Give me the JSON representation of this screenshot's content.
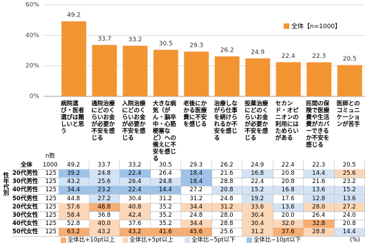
{
  "chart_data": {
    "type": "bar",
    "legend": "全体【n=1000】",
    "legend_position": "upper right",
    "color": "#f39433",
    "grid": true,
    "categories": [
      "病院選び・医者選びは難しいと思う",
      "通院治療にどのくらいお金が必要か不安を感じる",
      "入院治療にどのくらいお金が必要か不安を感じる",
      "大きな病気（がん・脳卒中・心筋梗塞など）への備えに不安を感じる",
      "老後にかかる医療費に不安を感じる",
      "治療しながら仕事を続けられるか不安を感じる",
      "投薬治療にどのくらいお金が必要か不安を感じる",
      "セカンド・オピニオンの利用にはためらいがある",
      "民間の保険で医療費や生活費がカバーできるか不安を感じる",
      "医師とのコミュニケーションが苦手"
    ],
    "values": [
      49.2,
      33.7,
      33.2,
      30.5,
      29.3,
      26.2,
      24.9,
      22.4,
      22.3,
      20.5
    ],
    "ylim": [
      0,
      60
    ],
    "yticks": [
      {
        "value": 0,
        "label": "0%"
      },
      {
        "value": 20,
        "label": "20%"
      },
      {
        "value": 40,
        "label": "40%"
      },
      {
        "value": 60,
        "label": "60%"
      }
    ]
  },
  "table": {
    "n_header": "n数",
    "group": "性年代別",
    "unit": "(%)",
    "rows": [
      {
        "label": "全体",
        "n": "1000",
        "values": [
          "49.2",
          "33.7",
          "33.2",
          "30.5",
          "29.3",
          "26.2",
          "24.9",
          "22.4",
          "22.3",
          "20.5"
        ]
      },
      {
        "label": "20代男性",
        "n": "125",
        "values": [
          "39.2",
          "24.8",
          "22.4",
          "26.4",
          "18.4",
          "21.6",
          "16.8",
          "20.8",
          "14.4",
          "25.6"
        ]
      },
      {
        "label": "30代男性",
        "n": "125",
        "values": [
          "43.2",
          "25.6",
          "26.4",
          "24.8",
          "18.4",
          "28.8",
          "22.4",
          "20.8",
          "21.6",
          "23.2"
        ]
      },
      {
        "label": "40代男性",
        "n": "125",
        "values": [
          "34.4",
          "23.2",
          "22.4",
          "14.4",
          "27.2",
          "20.8",
          "15.2",
          "16.8",
          "13.6",
          "15.2"
        ]
      },
      {
        "label": "50代男性",
        "n": "125",
        "values": [
          "44.8",
          "27.2",
          "30.4",
          "31.2",
          "31.2",
          "24.8",
          "19.2",
          "17.6",
          "12.8",
          "13.6"
        ]
      },
      {
        "label": "20代女性",
        "n": "125",
        "values": [
          "57.6",
          "48.8",
          "40.8",
          "35.2",
          "34.4",
          "31.2",
          "33.6",
          "13.6",
          "28.0",
          "27.2"
        ]
      },
      {
        "label": "30代女性",
        "n": "125",
        "values": [
          "58.4",
          "36.8",
          "42.4",
          "35.2",
          "24.8",
          "28.0",
          "30.4",
          "20.0",
          "26.4",
          "24.0"
        ]
      },
      {
        "label": "40代女性",
        "n": "125",
        "values": [
          "52.8",
          "40.0",
          "37.6",
          "35.2",
          "34.4",
          "28.8",
          "30.4",
          "32.0",
          "32.8",
          "20.8"
        ]
      },
      {
        "label": "50代女性",
        "n": "125",
        "values": [
          "63.2",
          "43.2",
          "43.2",
          "41.6",
          "45.6",
          "25.6",
          "31.2",
          "37.6",
          "28.8",
          "14.4"
        ]
      }
    ],
    "highlight": [
      {
        "label": "全体比+10pt以上",
        "color": "#f6ad72",
        "delta": 10
      },
      {
        "label": "全体比+5pt以上",
        "color": "#fbd7b8",
        "delta": 5
      },
      {
        "label": "全体比−5pt以下",
        "color": "#d3e3f4",
        "delta": -5
      },
      {
        "label": "全体比−10pt以下",
        "color": "#9fc3e8",
        "delta": -10
      }
    ]
  }
}
